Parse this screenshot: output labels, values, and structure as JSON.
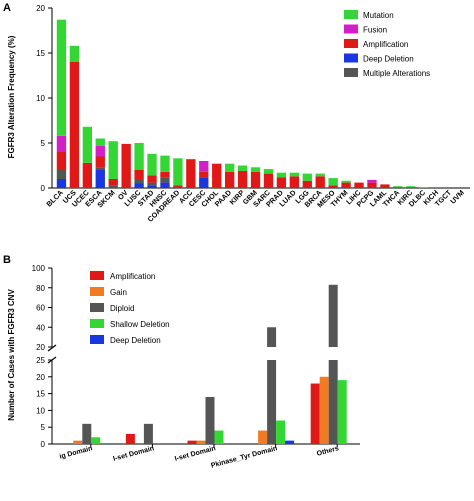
{
  "colors": {
    "Mutation": "#33d633",
    "Fusion": "#d020c8",
    "Amplification": "#e01818",
    "Deep Deletion": "#1a36e0",
    "Multiple Alterations": "#555555",
    "Gain": "#f07b22",
    "Diploid": "#555555",
    "Shallow Deletion": "#33d633"
  },
  "chart_data": [
    {
      "panel": "A",
      "type": "bar",
      "stacked": true,
      "ylabel": "FGFR3 Alteration Frequency (%)",
      "ylim": [
        0,
        20
      ],
      "yticks": [
        0,
        5,
        10,
        15,
        20
      ],
      "legend_position": "top-right",
      "categories": [
        "BLCA",
        "UCS",
        "UCEC",
        "ESCA",
        "SKCM",
        "OV",
        "LUSC",
        "STAD",
        "HNSC",
        "COADREAD",
        "ACC",
        "CESC",
        "CHOL",
        "PAAD",
        "KIRP",
        "GBM",
        "SARC",
        "PRAD",
        "LUAD",
        "LGG",
        "BRCA",
        "MESO",
        "THYM",
        "LIHC",
        "PCPG",
        "LAML",
        "THCA",
        "KIRC",
        "DLBC",
        "KICH",
        "TGCT",
        "UVM"
      ],
      "series": [
        {
          "name": "Deep Deletion",
          "values": [
            1.0,
            0,
            0,
            2.0,
            0,
            0,
            0.5,
            0.3,
            0.6,
            0,
            0,
            1.2,
            0,
            0,
            0,
            0.1,
            0.1,
            0,
            0.1,
            0,
            0,
            0,
            0,
            0,
            0,
            0,
            0,
            0,
            0,
            0,
            0,
            0
          ]
        },
        {
          "name": "Multiple Alterations",
          "values": [
            1.0,
            0,
            0,
            0.3,
            0.3,
            0,
            0.5,
            0.3,
            0.6,
            0,
            0,
            0,
            0,
            0,
            0,
            0,
            0,
            0,
            0,
            0,
            0,
            0,
            0,
            0,
            0,
            0,
            0,
            0,
            0,
            0,
            0,
            0
          ]
        },
        {
          "name": "Amplification",
          "values": [
            2.0,
            14.0,
            2.8,
            1.2,
            0.7,
            4.9,
            1.0,
            0.8,
            0.6,
            0.3,
            3.2,
            0.6,
            2.7,
            1.8,
            1.9,
            1.7,
            1.5,
            1.2,
            1.2,
            0.8,
            1.3,
            0.3,
            0.6,
            0.6,
            0.6,
            0.4,
            0.1,
            0.1,
            0,
            0,
            0,
            0
          ]
        },
        {
          "name": "Fusion",
          "values": [
            1.8,
            0,
            0,
            1.2,
            0,
            0,
            0,
            0,
            0,
            0,
            0,
            1.2,
            0,
            0,
            0,
            0,
            0,
            0,
            0,
            0,
            0,
            0,
            0,
            0,
            0.3,
            0,
            0,
            0,
            0,
            0,
            0,
            0
          ]
        },
        {
          "name": "Mutation",
          "values": [
            12.9,
            1.8,
            4.0,
            0.8,
            4.2,
            0,
            3.0,
            2.4,
            1.8,
            3.0,
            0,
            0,
            0,
            0.9,
            0.6,
            0.5,
            0.5,
            0.5,
            0.4,
            0.8,
            0.3,
            0.8,
            0.2,
            0,
            0,
            0,
            0.1,
            0.1,
            0.1,
            0,
            0,
            0
          ]
        }
      ]
    },
    {
      "panel": "B",
      "type": "bar",
      "grouped": true,
      "ylabel": "Number of Cases with FGFR3 CNV",
      "axis_break": true,
      "ylim_lower": [
        0,
        25
      ],
      "yticks_lower": [
        0,
        5,
        10,
        15,
        20,
        25
      ],
      "ylim_upper": [
        20,
        100
      ],
      "yticks_upper": [
        20,
        40,
        60,
        80,
        100
      ],
      "legend_position": "top-left",
      "categories": [
        "ig Domain",
        "I-set Domain",
        "I-set Domain",
        "Pkinase_Tyr Domain",
        "Others"
      ],
      "series": [
        {
          "name": "Amplification",
          "values": [
            0,
            3,
            1,
            0,
            18
          ]
        },
        {
          "name": "Gain",
          "values": [
            1,
            0,
            1,
            4,
            20
          ]
        },
        {
          "name": "Diploid",
          "values": [
            6,
            6,
            14,
            40,
            83
          ]
        },
        {
          "name": "Shallow Deletion",
          "values": [
            2,
            0,
            4,
            7,
            19
          ]
        },
        {
          "name": "Deep Deletion",
          "values": [
            0,
            0,
            0,
            1,
            0
          ]
        }
      ]
    }
  ]
}
